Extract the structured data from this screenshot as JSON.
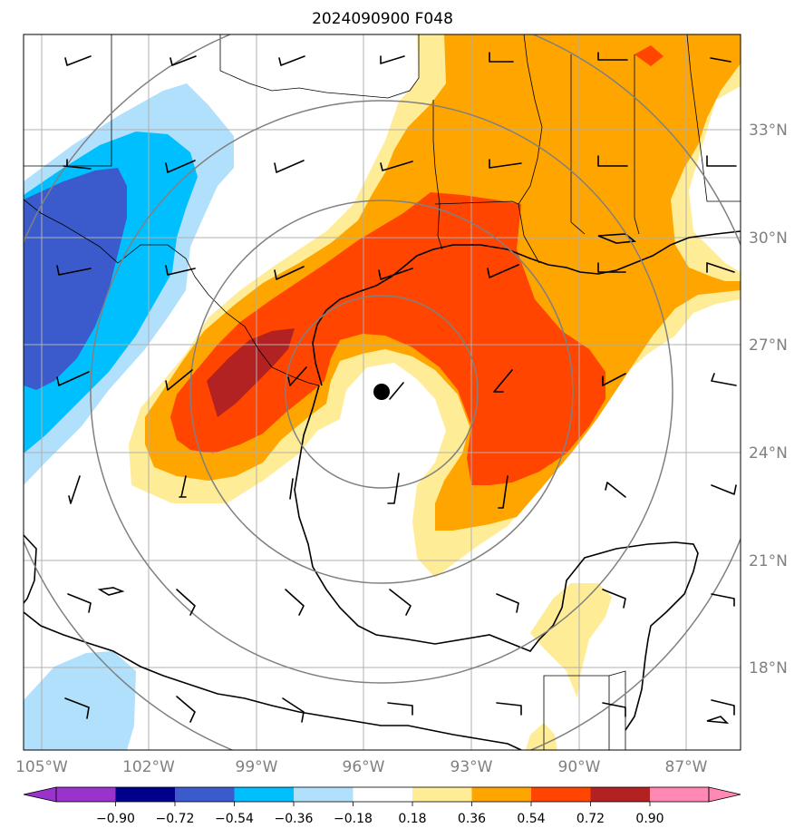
{
  "title": "2024090900 F048",
  "map": {
    "lon_range": [
      -105.5,
      -85.5
    ],
    "lat_range": [
      15.5,
      35.5
    ],
    "lon_ticks": [
      {
        "value": -105,
        "label": "105°W"
      },
      {
        "value": -102,
        "label": "102°W"
      },
      {
        "value": -99,
        "label": "99°W"
      },
      {
        "value": -96,
        "label": "96°W"
      },
      {
        "value": -93,
        "label": "93°W"
      },
      {
        "value": -90,
        "label": "90°W"
      },
      {
        "value": -87,
        "label": "87°W"
      }
    ],
    "lat_ticks": [
      {
        "value": 33,
        "label": "33°N"
      },
      {
        "value": 30,
        "label": "30°N"
      },
      {
        "value": 27,
        "label": "27°N"
      },
      {
        "value": 24,
        "label": "24°N"
      },
      {
        "value": 21,
        "label": "21°N"
      },
      {
        "value": 18,
        "label": "18°N"
      }
    ],
    "gridlines": true,
    "storm_center": {
      "lon": -95.5,
      "lat": 25.6
    },
    "range_rings_deg": [
      2.5,
      5,
      7.5,
      10
    ],
    "colors": {
      "neg_072": "#3b5bcc",
      "neg_054": "#00bfff",
      "neg_036": "#b0e0fc",
      "pos_018": "#ffec96",
      "pos_036": "#ffa500",
      "pos_054": "#ff4500",
      "pos_072": "#b22222",
      "gridline": "#b0b0b0",
      "ring": "#808080"
    }
  },
  "colorbar": {
    "colors": [
      "#9a32cd",
      "#00008b",
      "#3b5bcc",
      "#00bfff",
      "#b0e0fc",
      "#ffffff",
      "#ffec96",
      "#ffa500",
      "#ff4500",
      "#b22222",
      "#ff88b4"
    ],
    "extend_low_color": "#9a32cd",
    "extend_high_color": "#ff88b4",
    "ticks": [
      "−0.90",
      "−0.72",
      "−0.54",
      "−0.36",
      "−0.18",
      "0.18",
      "0.36",
      "0.54",
      "0.72",
      "0.90"
    ]
  }
}
